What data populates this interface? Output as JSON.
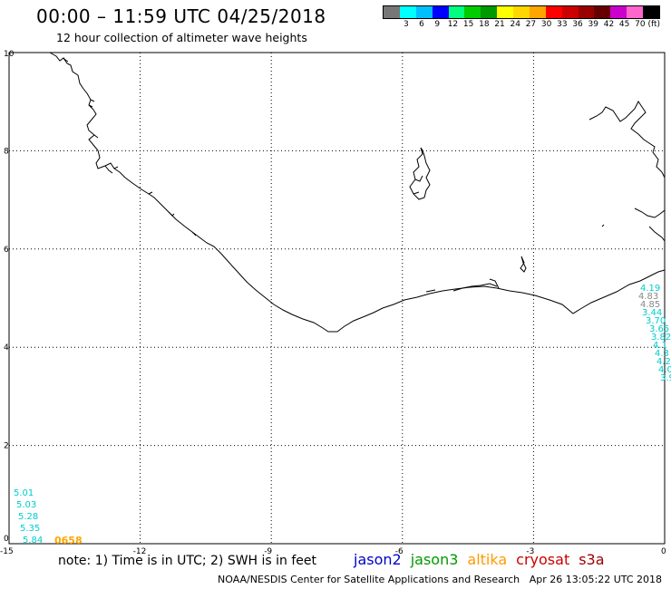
{
  "header": {
    "title": "00:00 – 11:59 UTC 04/25/2018",
    "subtitle": "12 hour collection of altimeter wave heights"
  },
  "color_scale": {
    "unit": "(ft)",
    "bins": [
      {
        "label": "",
        "color": "#777777"
      },
      {
        "label": "3",
        "color": "#00ffff"
      },
      {
        "label": "6",
        "color": "#00bfff"
      },
      {
        "label": "9",
        "color": "#0000ff"
      },
      {
        "label": "12",
        "color": "#00ff7f"
      },
      {
        "label": "15",
        "color": "#00cc00"
      },
      {
        "label": "18",
        "color": "#009900"
      },
      {
        "label": "21",
        "color": "#ffff00"
      },
      {
        "label": "24",
        "color": "#ffd700"
      },
      {
        "label": "27",
        "color": "#ffa500"
      },
      {
        "label": "30",
        "color": "#ff0000"
      },
      {
        "label": "33",
        "color": "#cc0000"
      },
      {
        "label": "36",
        "color": "#990000"
      },
      {
        "label": "39",
        "color": "#660000"
      },
      {
        "label": "42",
        "color": "#cc00cc"
      },
      {
        "label": "45",
        "color": "#ff66cc"
      },
      {
        "label": "70",
        "color": "#000000"
      }
    ]
  },
  "axes": {
    "lon_ticks": [
      "-15",
      "-12",
      "-9",
      "-6",
      "-3",
      "0"
    ],
    "lat_ticks": [
      "0",
      "2",
      "4",
      "6",
      "8",
      "10"
    ],
    "lon_range": [
      -15,
      0
    ],
    "lat_range": [
      0,
      10
    ]
  },
  "observations": {
    "left_cluster": [
      "5.01",
      "5.03",
      "5.28",
      "5.35",
      "5.84"
    ],
    "pass_time": "0658",
    "pass_time_color": "#ffa500",
    "obs_color": "#00cccc"
  },
  "footer": {
    "note": "note: 1) Time is in UTC; 2) SWH is in feet",
    "missions": [
      {
        "name": "jason2",
        "color": "#0000cc"
      },
      {
        "name": "jason3",
        "color": "#009900"
      },
      {
        "name": "altika",
        "color": "#ff9900"
      },
      {
        "name": "cryosat",
        "color": "#cc0000"
      },
      {
        "name": "s3a",
        "color": "#990000"
      }
    ],
    "credit": "NOAA/NESDIS Center for Satellite Applications and Research",
    "generated": "Apr 26 13:05:22 UTC 2018"
  }
}
